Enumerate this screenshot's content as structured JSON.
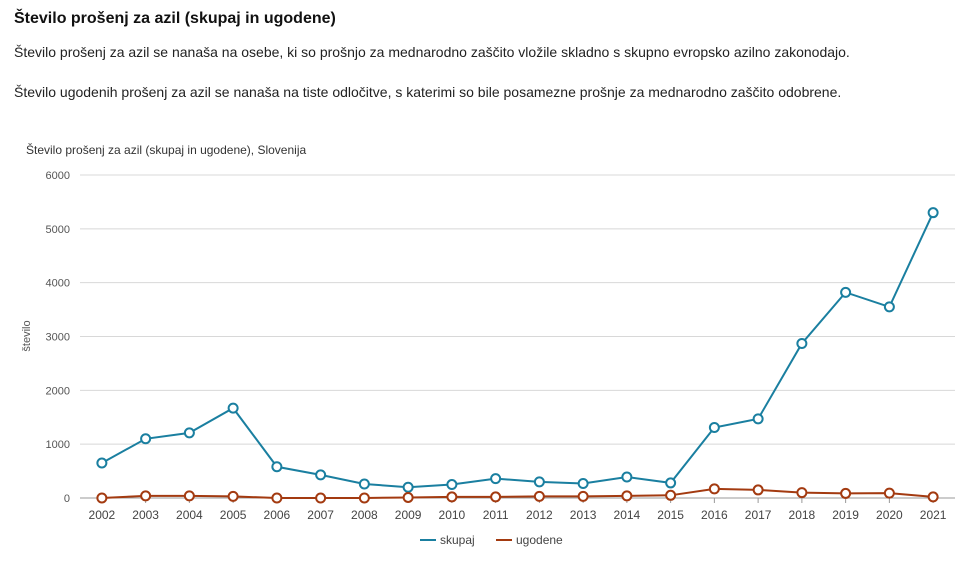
{
  "page": {
    "heading": "Število prošenj za azil (skupaj in ugodene)",
    "desc1": "Število prošenj za azil se nanaša na osebe, ki so prošnjo za mednarodno zaščito vložile skladno s skupno evropsko azilno zakonodajo.",
    "desc2": "Število ugodenih prošenj za azil se nanaša na tiste odločitve, s katerimi so bile posamezne prošnje za mednarodno zaščito odobrene."
  },
  "chart_data": {
    "type": "line",
    "title": "Število prošenj za azil (skupaj in ugodene), Slovenija",
    "xlabel": "",
    "ylabel": "število",
    "ylim": [
      0,
      6000
    ],
    "yticks": [
      0,
      1000,
      2000,
      3000,
      4000,
      5000,
      6000
    ],
    "grid": true,
    "legend_position": "bottom-center",
    "categories": [
      "2002",
      "2003",
      "2004",
      "2005",
      "2006",
      "2007",
      "2008",
      "2009",
      "2010",
      "2011",
      "2012",
      "2013",
      "2014",
      "2015",
      "2016",
      "2017",
      "2018",
      "2019",
      "2020",
      "2021"
    ],
    "series": [
      {
        "name": "skupaj",
        "color": "#1a7fa0",
        "values": [
          650,
          1100,
          1210,
          1670,
          580,
          430,
          260,
          200,
          250,
          360,
          300,
          270,
          390,
          280,
          1310,
          1470,
          2870,
          3820,
          3550,
          5300
        ]
      },
      {
        "name": "ugodene",
        "color": "#a33a10",
        "values": [
          0,
          40,
          40,
          30,
          0,
          0,
          0,
          10,
          20,
          20,
          30,
          30,
          40,
          50,
          170,
          150,
          100,
          85,
          90,
          20
        ]
      }
    ]
  }
}
